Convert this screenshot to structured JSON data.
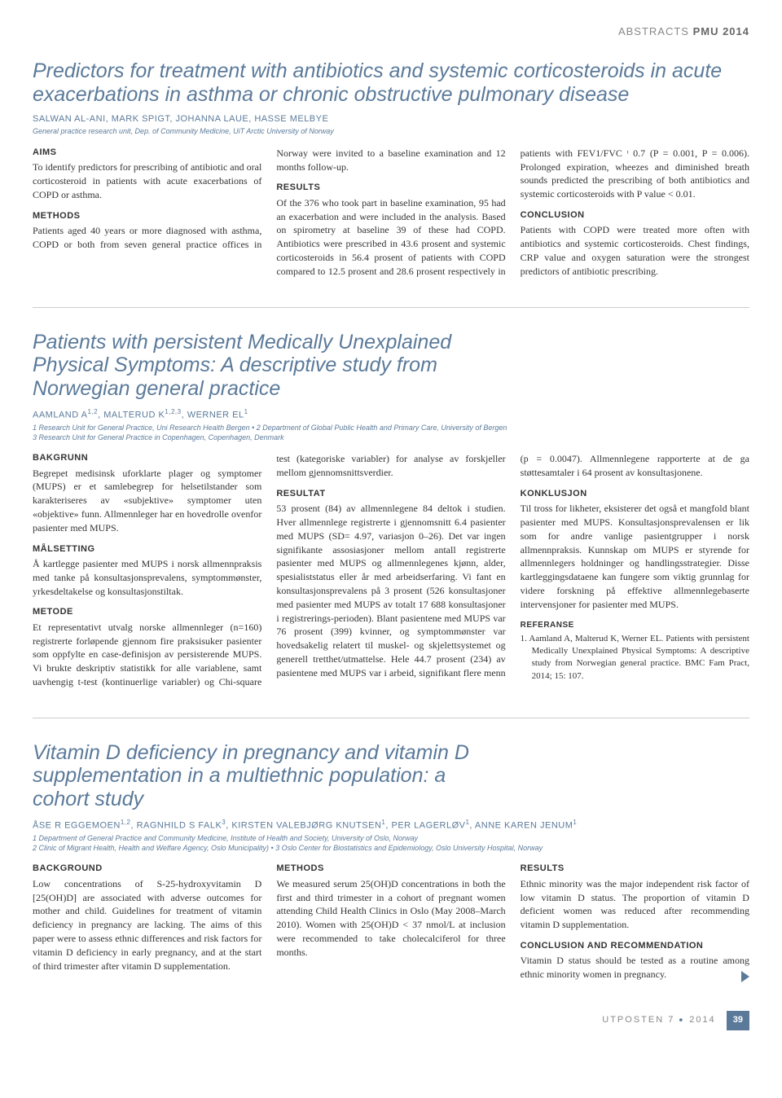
{
  "header": {
    "label_light": "ABSTRACTS",
    "label_bold": "PMU 2014"
  },
  "colors": {
    "accent": "#5b7a9a",
    "text": "#333333",
    "rule": "#cccccc",
    "bg": "#ffffff"
  },
  "typography": {
    "title_fontsize": 25,
    "body_fontsize": 12,
    "section_h_fontsize": 11,
    "authors_fontsize": 11,
    "affil_fontsize": 9
  },
  "a1": {
    "title": "Predictors for treatment with antibiotics and systemic corticosteroids in acute exacerbations in asthma or chronic obstructive pulmonary disease",
    "authors": "SALWAN AL-ANI, MARK SPIGT, JOHANNA LAUE, HASSE MELBYE",
    "affil": "General practice research unit, Dep. of Community Medicine, UiT Arctic University of Norway",
    "h_aims": "AIMS",
    "aims": "To identify predictors for prescribing of antibiotic and oral corticosteroid in patients with acute exacerbations of COPD or asthma.",
    "h_methods": "METHODS",
    "methods": "Patients aged 40 years or more diagnosed with asthma, COPD or both from seven general practice offices in Norway were invited to a baseline examination and 12 months follow-up.",
    "h_results": "RESULTS",
    "results": "Of the 376 who took part in baseline examination, 95 had an exacerbation and were included in the analysis. Based on spirometry at baseline 39 of these had COPD. Antibiotics were prescribed in 43.6 prosent and systemic corticosteroids in 56.4 prosent of patients with COPD compared to 12.5 prosent and 28.6 prosent respectively in patients with FEV1/FVC ᶦ 0.7 (P = 0.001, P = 0.006). Prolonged expiration, wheezes and diminished breath sounds predicted the prescribing of both antibiotics and systemic corticosteroids with P value < 0.01.",
    "h_conclusion": "CONCLUSION",
    "conclusion": "Patients with COPD were treated more often with antibiotics and systemic corticosteroids. Chest findings, CRP value and oxygen saturation were the strongest predictors of antibiotic prescribing."
  },
  "a2": {
    "title": "Patients with persistent Medically Unexplained Physical Symptoms: A descriptive study from Norwegian general practice",
    "authors_html": "AAMLAND A<sup>1,2</sup>, MALTERUD K<sup>1,2,3</sup>, WERNER EL<sup>1</sup>",
    "affil": "1 Research Unit for General Practice, Uni Research Health Bergen • 2 Department of Global Public Health and Primary Care, University of Bergen\n3 Research Unit for General Practice in Copenhagen, Copenhagen, Denmark",
    "h_bakgrunn": "BAKGRUNN",
    "bakgrunn": "Begrepet medisinsk uforklarte plager og symptomer (MUPS) er et samlebegrep for helsetilstander som karakteriseres av «subjektive» symptomer uten «objektive» funn. Allmennleger har en hovedrolle ovenfor pasienter med MUPS.",
    "h_malsetting": "MÅLSETTING",
    "malsetting": "Å kartlegge pasienter med MUPS i norsk allmennpraksis med tanke på konsultasjonsprevalens, symptommønster, yrkesdeltakelse og konsultasjonstiltak.",
    "h_metode": "METODE",
    "metode": "Et representativt utvalg norske allmennleger (n=160) registrerte forløpende gjennom fire praksisuker pasienter som oppfylte en case-definisjon av persisterende MUPS. Vi brukte deskriptiv statistikk for alle variablene, samt uavhengig t-test (kontinuerlige variabler) og Chi-square test (kategoriske variabler) for analyse av forskjeller mellom gjennomsnittsverdier.",
    "h_resultat": "RESULTAT",
    "resultat": "53 prosent (84) av allmennlegene 84 deltok i studien. Hver allmennlege registrerte i gjennomsnitt 6.4 pasienter med MUPS (SD= 4.97, variasjon 0–26). Det var ingen signifikante assosiasjoner mellom antall registrerte pasienter med MUPS og allmennlegenes kjønn, alder, spesialiststatus eller år med arbeidserfaring. Vi fant en konsultasjonsprevalens på 3 prosent (526 konsultasjoner med pasienter med MUPS av totalt 17 688 konsultasjoner i registrerings-perioden). Blant pasientene med MUPS var 76 prosent (399) kvinner, og symptommønster var hovedsakelig relatert til muskel- og skjelettsystemet og generell tretthet/utmattelse. Hele 44.7 prosent (234) av pasientene med MUPS var i arbeid, signifikant flere menn (p = 0.0047). Allmennlegene rapporterte at de ga støttesamtaler i 64 prosent av konsultasjonene.",
    "h_konklusjon": "KONKLUSJON",
    "konklusjon": "Til tross for likheter, eksisterer det også et mangfold blant pasienter med MUPS. Konsultasjonsprevalensen er lik som for andre vanlige pasientgrupper i norsk allmennpraksis. Kunnskap om MUPS er styrende for allmennlegers holdninger og handlingsstrategier. Disse kartleggingsdataene kan fungere som viktig grunnlag for videre forskning på effektive allmennlegebaserte intervensjoner for pasienter med MUPS.",
    "h_ref": "REFERANSE",
    "ref": "1. Aamland A, Malterud K, Werner EL. Patients with persistent Medically Unexplained Physical Symptoms: A descriptive study from Norwegian general practice. BMC Fam Pract, 2014; 15: 107."
  },
  "a3": {
    "title": "Vitamin D deficiency in pregnancy and vitamin D supplementation in a multiethnic population: a cohort study",
    "authors_html": "ÅSE R EGGEMOEN<sup>1,2</sup>, RAGNHILD S FALK<sup>3</sup>, KIRSTEN VALEBJØRG KNUTSEN<sup>1</sup>, PER LAGERLØV<sup>1</sup>, ANNE KAREN JENUM<sup>1</sup>",
    "affil": "1 Department of General Practice and Community Medicine, Institute of Health and Society, University of Oslo, Norway\n2 Clinic of Migrant Health, Health and Welfare Agency, Oslo Municipality) • 3 Oslo Center for Biostatistics and Epidemiology, Oslo University Hospital, Norway",
    "h_background": "BACKGROUND",
    "background": "Low concentrations of S-25-hydroxyvitamin D [25(OH)D] are associated with adverse outcomes for mother and child. Guidelines for treatment of vitamin deficiency in pregnancy are lacking. The aims of this paper were to assess ethnic differences and risk factors for vitamin D deficiency in early pregnancy, and at the start of third trimester after vitamin D supplementation.",
    "h_methods": "METHODS",
    "methods": "We measured serum 25(OH)D concentrations in both the first and third trimester in a cohort of pregnant women attending Child Health Clinics in Oslo (May 2008–March 2010). Women with 25(OH)D < 37 nmol/L at inclusion were recommended to take cholecalciferol for three months.",
    "h_results": "RESULTS",
    "results": "Ethnic minority was the major independent risk factor of low vitamin D status. The proportion of vitamin D deficient women was reduced after recommending vitamin D supplementation.",
    "h_conclusion": "CONCLUSION AND RECOMMENDATION",
    "conclusion": "Vitamin D status should be tested as a routine among ethnic minority women in pregnancy."
  },
  "footer": {
    "journal": "UTPOSTEN 7",
    "year": "2014",
    "page": "39"
  }
}
